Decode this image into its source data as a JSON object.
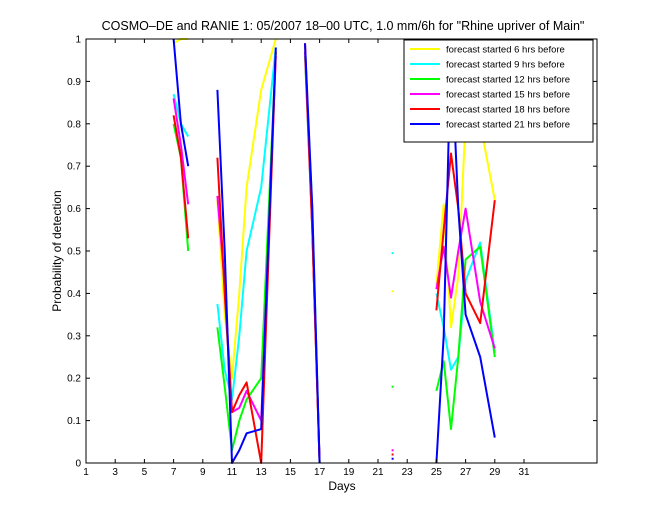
{
  "chart_data": {
    "type": "line",
    "title": "COSMO–DE and RANIE 1: 05/2007 18–00 UTC, 1.0 mm/6h for \"Rhine upriver of Main\"",
    "xlabel": "Days",
    "ylabel": "Probability of detection",
    "xlim": [
      1,
      36
    ],
    "ylim": [
      0,
      1
    ],
    "xticks": [
      1,
      3,
      5,
      7,
      9,
      11,
      13,
      15,
      17,
      19,
      21,
      23,
      25,
      27,
      29,
      31
    ],
    "yticks": [
      0,
      0.1,
      0.2,
      0.3,
      0.4,
      0.5,
      0.6,
      0.7,
      0.8,
      0.9,
      1
    ],
    "grid": false,
    "legend_position": "top-right",
    "series": [
      {
        "name": "forecast started 6 hrs before",
        "color": "#ffff00",
        "points": [
          [
            7,
            0.99
          ],
          [
            7.5,
            1.0
          ],
          [
            8,
            1.0
          ],
          null,
          [
            10,
            0.62
          ],
          [
            10.5,
            0.35
          ],
          [
            11,
            0.2
          ],
          [
            11.5,
            0.4
          ],
          [
            12,
            0.65
          ],
          [
            13,
            0.88
          ],
          [
            14,
            1.0
          ],
          null,
          [
            16,
            0.97
          ],
          [
            16.5,
            0.6
          ],
          [
            17,
            0.0
          ],
          null,
          [
            22,
            0.405
          ],
          null,
          [
            25,
            0.42
          ],
          [
            25.5,
            0.61
          ],
          [
            26,
            0.32
          ],
          [
            26.5,
            0.44
          ],
          [
            27,
            0.81
          ],
          [
            28,
            0.8
          ],
          [
            29,
            0.62
          ]
        ]
      },
      {
        "name": "forecast started 9 hrs before",
        "color": "#00ffff",
        "points": [
          [
            7,
            0.87
          ],
          [
            7.5,
            0.8
          ],
          [
            8,
            0.77
          ],
          null,
          [
            10,
            0.375
          ],
          [
            10.5,
            0.22
          ],
          [
            11,
            0.15
          ],
          [
            11.5,
            0.3
          ],
          [
            12,
            0.5
          ],
          [
            13,
            0.65
          ],
          [
            14,
            0.98
          ],
          null,
          [
            16,
            0.97
          ],
          [
            16.5,
            0.6
          ],
          [
            17,
            0.0
          ],
          null,
          [
            22,
            0.495
          ],
          null,
          [
            25,
            0.4
          ],
          [
            25.5,
            0.32
          ],
          [
            26,
            0.22
          ],
          [
            26.5,
            0.25
          ],
          [
            27,
            0.43
          ],
          [
            28,
            0.52
          ],
          [
            29,
            0.26
          ]
        ]
      },
      {
        "name": "forecast started 12 hrs before",
        "color": "#00ff00",
        "points": [
          [
            7,
            0.8
          ],
          [
            7.5,
            0.72
          ],
          [
            8,
            0.5
          ],
          null,
          [
            10,
            0.32
          ],
          [
            10.5,
            0.18
          ],
          [
            11,
            0.03
          ],
          [
            11.5,
            0.1
          ],
          [
            12,
            0.15
          ],
          [
            13,
            0.2
          ],
          [
            14,
            0.97
          ],
          null,
          [
            16,
            0.96
          ],
          [
            16.5,
            0.55
          ],
          [
            17,
            0.0
          ],
          null,
          [
            22,
            0.18
          ],
          null,
          [
            25,
            0.17
          ],
          [
            25.5,
            0.24
          ],
          [
            26,
            0.08
          ],
          [
            26.5,
            0.25
          ],
          [
            27,
            0.48
          ],
          [
            28,
            0.51
          ],
          [
            29,
            0.25
          ]
        ]
      },
      {
        "name": "forecast started 15 hrs before",
        "color": "#ff00ff",
        "points": [
          [
            7,
            0.86
          ],
          [
            7.5,
            0.75
          ],
          [
            8,
            0.61
          ],
          null,
          [
            10,
            0.63
          ],
          [
            10.5,
            0.42
          ],
          [
            11,
            0.12
          ],
          [
            11.5,
            0.13
          ],
          [
            12,
            0.17
          ],
          [
            13,
            0.1
          ],
          [
            14,
            0.96
          ],
          null,
          [
            16,
            0.97
          ],
          [
            16.5,
            0.55
          ],
          [
            17,
            0.0
          ],
          null,
          [
            22,
            0.03
          ],
          null,
          [
            25,
            0.41
          ],
          [
            25.5,
            0.51
          ],
          [
            26,
            0.39
          ],
          [
            26.5,
            0.5
          ],
          [
            27,
            0.6
          ],
          [
            28,
            0.38
          ],
          [
            29,
            0.27
          ]
        ]
      },
      {
        "name": "forecast started 18 hrs before",
        "color": "#ff0000",
        "points": [
          [
            7,
            0.82
          ],
          [
            7.5,
            0.72
          ],
          [
            8,
            0.53
          ],
          null,
          [
            10,
            0.72
          ],
          [
            10.5,
            0.4
          ],
          [
            11,
            0.12
          ],
          [
            11.5,
            0.16
          ],
          [
            12,
            0.19
          ],
          [
            13,
            0.0
          ],
          [
            14,
            0.97
          ],
          null,
          [
            16,
            0.99
          ],
          [
            16.5,
            0.55
          ],
          [
            17,
            0.0
          ],
          null,
          [
            22,
            0.02
          ],
          null,
          [
            25,
            0.36
          ],
          [
            25.5,
            0.55
          ],
          [
            26,
            0.73
          ],
          [
            26.5,
            0.6
          ],
          [
            27,
            0.4
          ],
          [
            28,
            0.33
          ],
          [
            29,
            0.62
          ]
        ]
      },
      {
        "name": "forecast started 21 hrs before",
        "color": "#0000ff",
        "points": [
          [
            7,
            1.0
          ],
          [
            7.5,
            0.8
          ],
          [
            8,
            0.7
          ],
          null,
          [
            10,
            0.88
          ],
          [
            10.5,
            0.5
          ],
          [
            11,
            0.0
          ],
          [
            11.5,
            0.03
          ],
          [
            12,
            0.07
          ],
          [
            13,
            0.08
          ],
          [
            14,
            0.98
          ],
          null,
          [
            16,
            0.99
          ],
          [
            16.5,
            0.6
          ],
          [
            17,
            0.0
          ],
          null,
          [
            22,
            0.01
          ],
          null,
          [
            25,
            0.0
          ],
          [
            25.5,
            0.3
          ],
          [
            26,
            0.99
          ],
          [
            26.5,
            0.6
          ],
          [
            27,
            0.35
          ],
          [
            28,
            0.25
          ],
          [
            29,
            0.06
          ]
        ]
      }
    ]
  }
}
